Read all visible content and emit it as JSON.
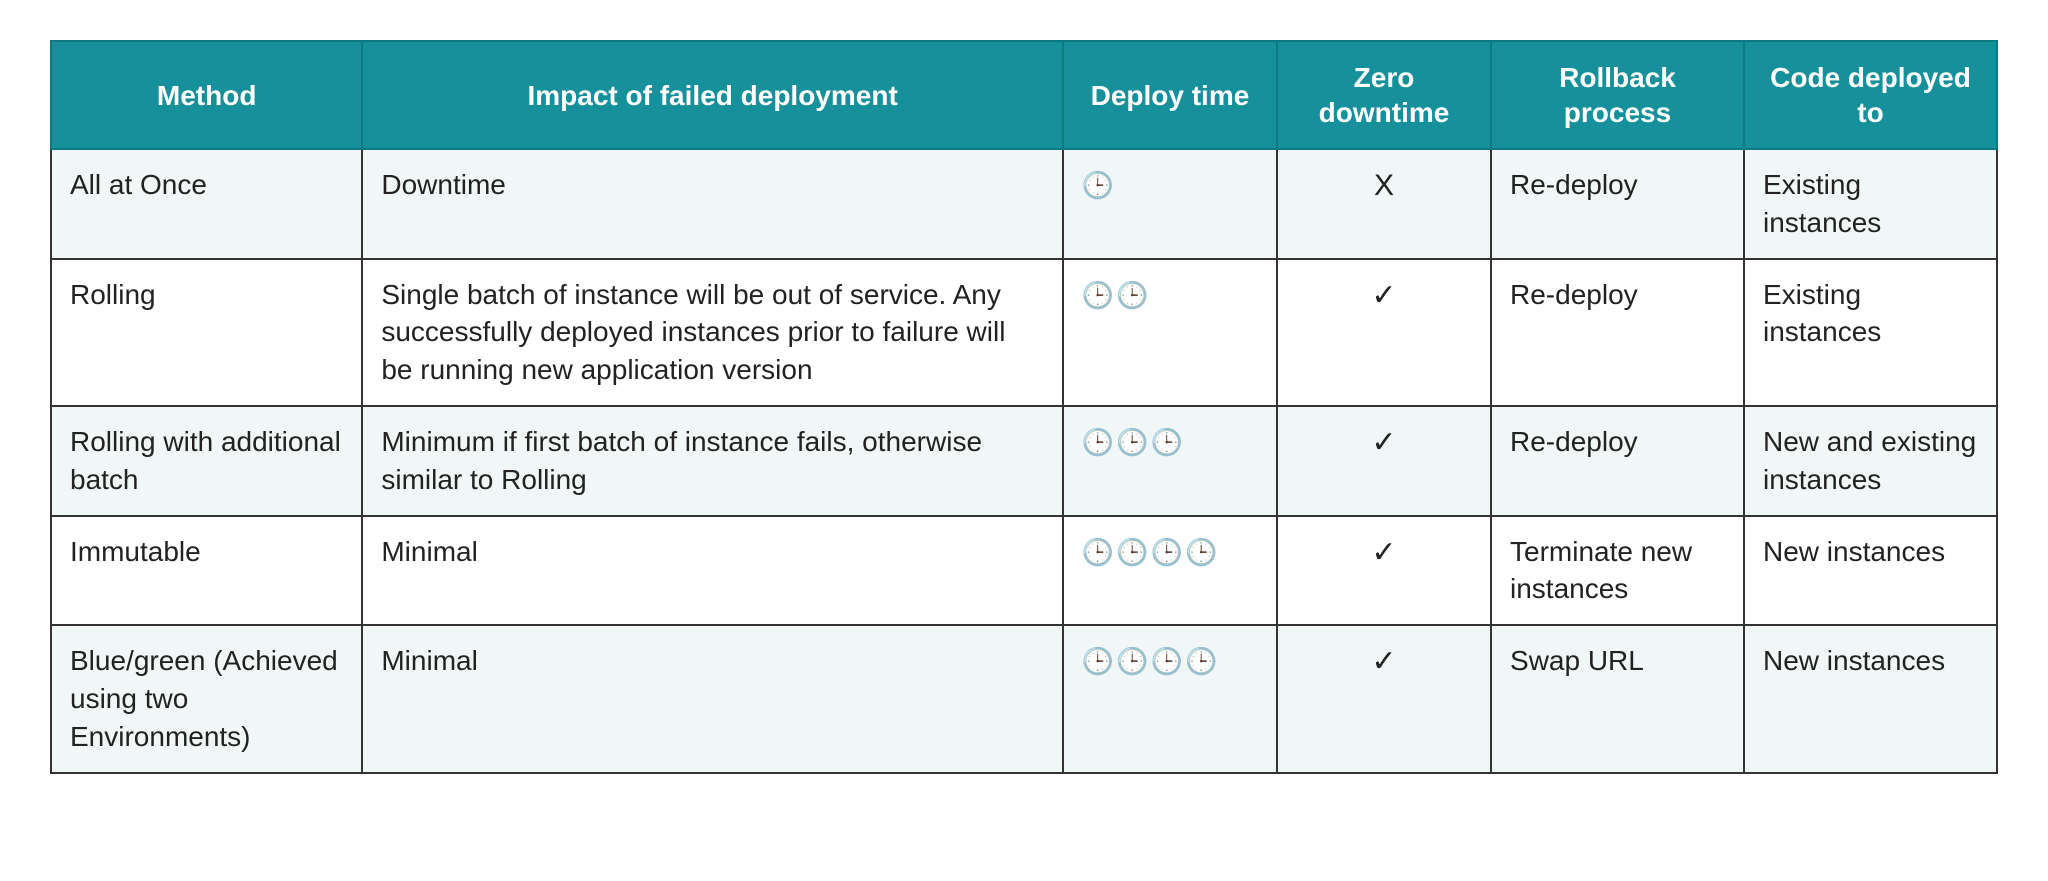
{
  "table": {
    "type": "table",
    "header_background": "#16919b",
    "header_text_color": "#ffffff",
    "border_color": "#333333",
    "row_alt_color": "#f0f7f6",
    "row_base_color": "#ffffff",
    "font_size": 28,
    "columns": [
      {
        "label": "Method",
        "width": "16%"
      },
      {
        "label": "Impact of failed deployment",
        "width": "36%"
      },
      {
        "label": "Deploy time",
        "width": "11%"
      },
      {
        "label": "Zero downtime",
        "width": "11%"
      },
      {
        "label": "Rollback process",
        "width": "13%"
      },
      {
        "label": "Code deployed to",
        "width": "13%"
      }
    ],
    "clock_glyph": "🕒",
    "check_glyph": "✓",
    "x_glyph": "X",
    "rows": [
      {
        "method": "All at Once",
        "impact": "Downtime",
        "deploy_clocks": 1,
        "zero_downtime": false,
        "rollback": "Re-deploy",
        "code": "Existing instances"
      },
      {
        "method": "Rolling",
        "impact": "Single batch of instance will be out of service. Any successfully deployed instances prior to failure will be running new application version",
        "deploy_clocks": 2,
        "zero_downtime": true,
        "rollback": "Re-deploy",
        "code": "Existing instances"
      },
      {
        "method": "Rolling with additional batch",
        "impact": "Minimum if first batch of instance fails, otherwise similar to Rolling",
        "deploy_clocks": 3,
        "zero_downtime": true,
        "rollback": "Re-deploy",
        "code": "New and existing instances"
      },
      {
        "method": "Immutable",
        "impact": "Minimal",
        "deploy_clocks": 4,
        "zero_downtime": true,
        "rollback": "Terminate new instances",
        "code": "New instances"
      },
      {
        "method": "Blue/green (Achieved using two Environments)",
        "impact": "Minimal",
        "deploy_clocks": 4,
        "zero_downtime": true,
        "rollback": "Swap URL",
        "code": "New instances"
      }
    ]
  }
}
